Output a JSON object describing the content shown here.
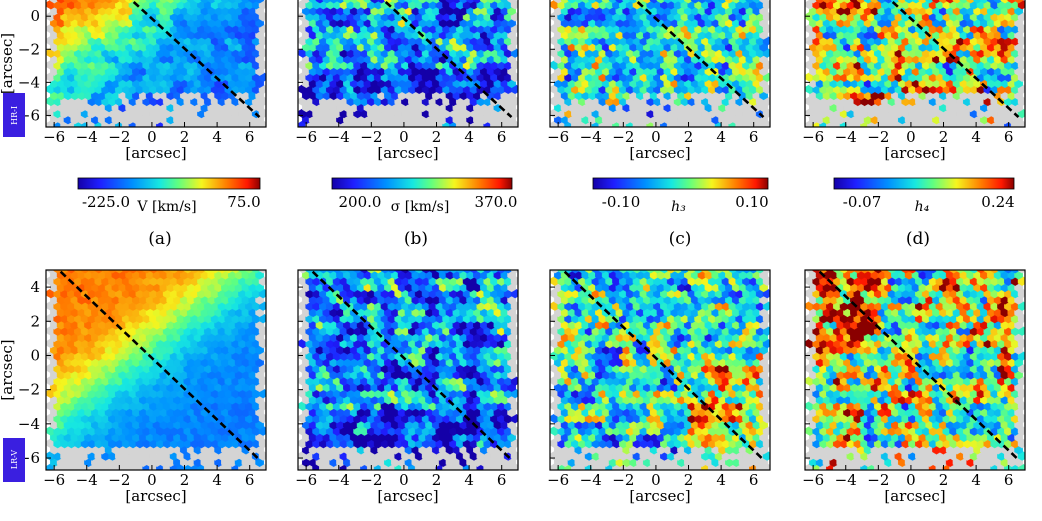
{
  "figure": {
    "axis_label": "[arcsec]",
    "x_ticks": [
      "−6",
      "−4",
      "−2",
      "0",
      "2",
      "4",
      "6"
    ],
    "y_ticks": [
      "4",
      "2",
      "0",
      "−2",
      "−4",
      "−6"
    ],
    "row_tags": [
      "HR-I",
      "LR-V"
    ],
    "panel_letters": [
      "(a)",
      "(b)",
      "(c)",
      "(d)"
    ],
    "colorbars": [
      {
        "min_label": "-225.0",
        "title": "V [km/s]",
        "max_label": "75.0",
        "vmin": -225,
        "vmax": 75
      },
      {
        "min_label": "200.0",
        "title": "σ [km/s]",
        "max_label": "370.0",
        "vmin": 200,
        "vmax": 370
      },
      {
        "min_label": "-0.10",
        "title": "h₃",
        "max_label": "0.10",
        "vmin": -0.1,
        "vmax": 0.1
      },
      {
        "min_label": "-0.07",
        "title": "h₄",
        "max_label": "0.24",
        "vmin": -0.07,
        "vmax": 0.24
      }
    ],
    "colors": {
      "masked": "#d4d4d4",
      "frame": "#000000",
      "tag_bg": "#3a1fe0"
    }
  }
}
